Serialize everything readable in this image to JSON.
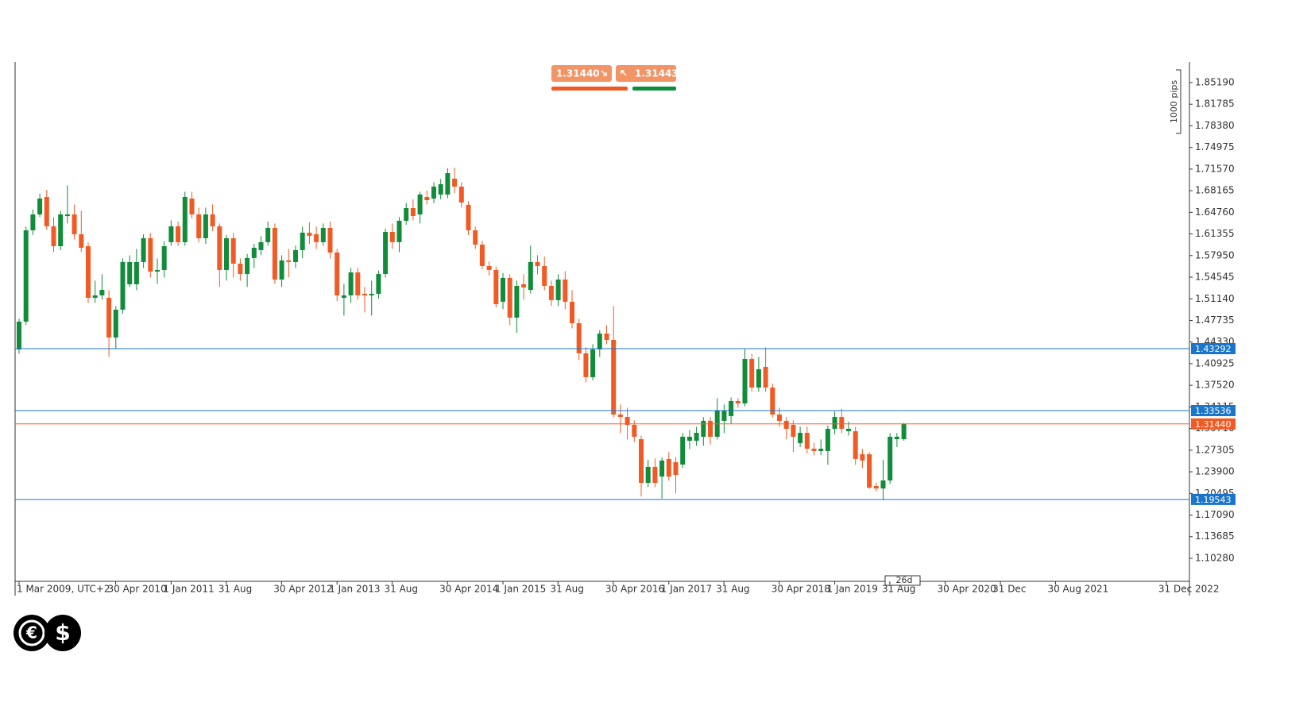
{
  "chart_data": {
    "type": "candlestick",
    "x": [
      "2009-03-01",
      "2009-04-01",
      "2009-05-01",
      "2009-06-01",
      "2009-07-01",
      "2009-08-01",
      "2009-09-01",
      "2009-10-01",
      "2009-11-01",
      "2009-12-01",
      "2010-01-01",
      "2010-02-01",
      "2010-03-01",
      "2010-04-01",
      "2010-05-01",
      "2010-06-01",
      "2010-07-01",
      "2010-08-01",
      "2010-09-01",
      "2010-10-01",
      "2010-11-01",
      "2010-12-01",
      "2011-01-01",
      "2011-02-01",
      "2011-03-01",
      "2011-04-01",
      "2011-05-01",
      "2011-06-01",
      "2011-07-01",
      "2011-08-01",
      "2011-09-01",
      "2011-10-01",
      "2011-11-01",
      "2011-12-01",
      "2012-01-01",
      "2012-02-01",
      "2012-03-01",
      "2012-04-01",
      "2012-05-01",
      "2012-06-01",
      "2012-07-01",
      "2012-08-01",
      "2012-09-01",
      "2012-10-01",
      "2012-11-01",
      "2012-12-01",
      "2013-01-01",
      "2013-02-01",
      "2013-03-01",
      "2013-04-01",
      "2013-05-01",
      "2013-06-01",
      "2013-07-01",
      "2013-08-01",
      "2013-09-01",
      "2013-10-01",
      "2013-11-01",
      "2013-12-01",
      "2014-01-01",
      "2014-02-01",
      "2014-03-01",
      "2014-04-01",
      "2014-05-01",
      "2014-06-01",
      "2014-07-01",
      "2014-08-01",
      "2014-09-01",
      "2014-10-01",
      "2014-11-01",
      "2014-12-01",
      "2015-01-01",
      "2015-02-01",
      "2015-03-01",
      "2015-04-01",
      "2015-05-01",
      "2015-06-01",
      "2015-07-01",
      "2015-08-01",
      "2015-09-01",
      "2015-10-01",
      "2015-11-01",
      "2015-12-01",
      "2016-01-01",
      "2016-02-01",
      "2016-03-01",
      "2016-04-01",
      "2016-05-01",
      "2016-06-01",
      "2016-07-01",
      "2016-08-01",
      "2016-09-01",
      "2016-10-01",
      "2016-11-01",
      "2016-12-01",
      "2017-01-01",
      "2017-02-01",
      "2017-03-01",
      "2017-04-01",
      "2017-05-01",
      "2017-06-01",
      "2017-07-01",
      "2017-08-01",
      "2017-09-01",
      "2017-10-01",
      "2017-11-01",
      "2017-12-01",
      "2018-01-01",
      "2018-02-01",
      "2018-03-01",
      "2018-04-01",
      "2018-05-01",
      "2018-06-01",
      "2018-07-01",
      "2018-08-01",
      "2018-09-01",
      "2018-10-01",
      "2018-11-01",
      "2018-12-01",
      "2019-01-01",
      "2019-02-01",
      "2019-03-01",
      "2019-04-01",
      "2019-05-01",
      "2019-06-01",
      "2019-07-01",
      "2019-08-01",
      "2019-09-01",
      "2019-10-01",
      "2019-11-01"
    ],
    "open": [
      1.4317,
      1.4755,
      1.6193,
      1.6443,
      1.6718,
      1.6256,
      1.5943,
      1.6418,
      1.6443,
      1.6131,
      1.5943,
      1.513,
      1.5168,
      1.513,
      1.4505,
      1.4943,
      1.5343,
      1.5343,
      1.5693,
      1.6068,
      1.5543,
      1.5568,
      1.6006,
      1.6256,
      1.6006,
      1.6693,
      1.6443,
      1.6068,
      1.6443,
      1.6256,
      1.5568,
      1.6068,
      1.5668,
      1.5505,
      1.5756,
      1.5881,
      1.6006,
      1.6231,
      1.5418,
      1.5718,
      1.5693,
      1.5881,
      1.6156,
      1.6131,
      1.6006,
      1.6231,
      1.5843,
      1.513,
      1.5168,
      1.553,
      1.5193,
      1.5168,
      1.5193,
      1.5505,
      1.6168,
      1.6006,
      1.6343,
      1.6543,
      1.6443,
      1.6718,
      1.6693,
      1.6756,
      1.6756,
      1.7006,
      1.6881,
      1.6593,
      1.6193,
      1.5968,
      1.563,
      1.5568,
      1.5068,
      1.5443,
      1.4818,
      1.5343,
      1.5255,
      1.5693,
      1.563,
      1.5318,
      1.5093,
      1.5418,
      1.5068,
      1.473,
      1.4255,
      1.388,
      1.4317,
      1.4567,
      1.4467,
      1.3292,
      1.3254,
      1.3129,
      1.2904,
      1.2216,
      1.2467,
      1.2316,
      1.2592,
      1.2542,
      1.2504,
      1.2879,
      1.2879,
      1.2942,
      1.3192,
      1.2942,
      1.3192,
      1.3267,
      1.3504,
      1.3467,
      1.4167,
      1.3717,
      1.4042,
      1.3717,
      1.3292,
      1.3192,
      1.3129,
      1.2842,
      1.3004,
      1.2754,
      1.2717,
      1.2717,
      1.3067,
      1.3254,
      1.3029,
      1.3029,
      1.2667,
      1.2667,
      1.2166,
      1.2128,
      1.2254,
      1.2904,
      1.2904
    ],
    "high": [
      1.48,
      1.625,
      1.652,
      1.677,
      1.683,
      1.64,
      1.65,
      1.69,
      1.66,
      1.65,
      1.6,
      1.54,
      1.55,
      1.525,
      1.5,
      1.575,
      1.58,
      1.59,
      1.613,
      1.615,
      1.575,
      1.602,
      1.635,
      1.633,
      1.68,
      1.68,
      1.655,
      1.655,
      1.66,
      1.63,
      1.612,
      1.615,
      1.575,
      1.582,
      1.598,
      1.61,
      1.633,
      1.63,
      1.58,
      1.59,
      1.595,
      1.625,
      1.632,
      1.625,
      1.63,
      1.633,
      1.59,
      1.535,
      1.56,
      1.56,
      1.53,
      1.54,
      1.556,
      1.622,
      1.63,
      1.64,
      1.662,
      1.668,
      1.68,
      1.682,
      1.695,
      1.7,
      1.717,
      1.718,
      1.695,
      1.665,
      1.625,
      1.603,
      1.57,
      1.562,
      1.552,
      1.55,
      1.54,
      1.55,
      1.595,
      1.58,
      1.578,
      1.54,
      1.55,
      1.555,
      1.525,
      1.48,
      1.435,
      1.44,
      1.462,
      1.47,
      1.5,
      1.345,
      1.34,
      1.32,
      1.296,
      1.258,
      1.26,
      1.262,
      1.27,
      1.262,
      1.3,
      1.305,
      1.31,
      1.325,
      1.325,
      1.355,
      1.345,
      1.356,
      1.355,
      1.432,
      1.425,
      1.42,
      1.435,
      1.378,
      1.34,
      1.325,
      1.32,
      1.31,
      1.31,
      1.285,
      1.29,
      1.312,
      1.334,
      1.338,
      1.318,
      1.31,
      1.275,
      1.27,
      1.222,
      1.258,
      1.3,
      1.3,
      1.316
    ],
    "low": [
      1.425,
      1.47,
      1.612,
      1.64,
      1.62,
      1.585,
      1.588,
      1.63,
      1.605,
      1.585,
      1.505,
      1.505,
      1.51,
      1.42,
      1.432,
      1.488,
      1.53,
      1.525,
      1.56,
      1.545,
      1.535,
      1.545,
      1.595,
      1.595,
      1.595,
      1.638,
      1.6,
      1.598,
      1.618,
      1.53,
      1.54,
      1.545,
      1.54,
      1.53,
      1.56,
      1.58,
      1.595,
      1.535,
      1.53,
      1.545,
      1.56,
      1.575,
      1.598,
      1.59,
      1.595,
      1.575,
      1.508,
      1.485,
      1.505,
      1.51,
      1.49,
      1.485,
      1.512,
      1.545,
      1.59,
      1.585,
      1.628,
      1.635,
      1.63,
      1.66,
      1.662,
      1.668,
      1.67,
      1.678,
      1.655,
      1.612,
      1.59,
      1.558,
      1.548,
      1.498,
      1.495,
      1.47,
      1.458,
      1.51,
      1.52,
      1.55,
      1.525,
      1.5,
      1.5,
      1.495,
      1.465,
      1.415,
      1.38,
      1.383,
      1.42,
      1.44,
      1.325,
      1.3,
      1.29,
      1.286,
      1.2,
      1.215,
      1.215,
      1.197,
      1.225,
      1.205,
      1.245,
      1.275,
      1.28,
      1.28,
      1.282,
      1.29,
      1.3,
      1.315,
      1.34,
      1.342,
      1.365,
      1.365,
      1.365,
      1.325,
      1.31,
      1.29,
      1.27,
      1.278,
      1.268,
      1.265,
      1.265,
      1.25,
      1.298,
      1.3,
      1.296,
      1.25,
      1.245,
      1.212,
      1.208,
      1.1944,
      1.22,
      1.278,
      1.288
    ],
    "close": [
      1.4755,
      1.6193,
      1.6443,
      1.6693,
      1.6256,
      1.5943,
      1.6443,
      1.6443,
      1.6131,
      1.5918,
      1.513,
      1.5168,
      1.5255,
      1.4505,
      1.4943,
      1.5693,
      1.5693,
      1.5693,
      1.6068,
      1.5543,
      1.5568,
      1.5943,
      1.6256,
      1.6006,
      1.6718,
      1.6443,
      1.6068,
      1.6443,
      1.6256,
      1.5568,
      1.6068,
      1.5668,
      1.5505,
      1.5756,
      1.5918,
      1.6006,
      1.6231,
      1.5418,
      1.5718,
      1.5693,
      1.5881,
      1.6156,
      1.6106,
      1.6006,
      1.6231,
      1.5843,
      1.5168,
      1.5168,
      1.553,
      1.5168,
      1.5168,
      1.5193,
      1.5505,
      1.6168,
      1.6006,
      1.6343,
      1.6543,
      1.6418,
      1.6756,
      1.6668,
      1.6881,
      1.6918,
      1.7093,
      1.6881,
      1.663,
      1.6193,
      1.5968,
      1.563,
      1.5568,
      1.503,
      1.5443,
      1.4818,
      1.5318,
      1.5293,
      1.5693,
      1.563,
      1.5318,
      1.5093,
      1.5418,
      1.5068,
      1.473,
      1.4255,
      1.388,
      1.4317,
      1.4567,
      1.4467,
      1.3292,
      1.3254,
      1.3129,
      1.2942,
      1.2216,
      1.2467,
      1.2216,
      1.2567,
      1.2316,
      1.2341,
      1.2942,
      1.2942,
      1.3004,
      1.3192,
      1.2942,
      1.3354,
      1.3354,
      1.3504,
      1.3467,
      1.4167,
      1.3717,
      1.4005,
      1.3717,
      1.3292,
      1.3192,
      1.3067,
      1.2942,
      1.3004,
      1.2754,
      1.2717,
      1.2754,
      1.3067,
      1.3254,
      1.3067,
      1.3067,
      1.2592,
      1.2567,
      1.2141,
      1.2128,
      1.2254,
      1.2942,
      1.2942,
      1.3144
    ],
    "up_color": "#118c3a",
    "down_color": "#f15a24",
    "ylim": [
      1.0665,
      1.8844
    ],
    "yticks": [
      {
        "value": 1.8519,
        "label": "1.85190"
      },
      1.81785,
      {
        "value": 1.7838,
        "label": "1.78380"
      },
      1.74975,
      {
        "value": 1.7157,
        "label": "1.71570"
      },
      1.68165,
      {
        "value": 1.6476,
        "label": "1.64760"
      },
      1.61355,
      {
        "value": 1.5795,
        "label": "1.57950"
      },
      1.54545,
      {
        "value": 1.5114,
        "label": "1.51140"
      },
      1.47735,
      {
        "value": 1.4433,
        "label": "1.44330"
      },
      1.40925,
      {
        "value": 1.3752,
        "label": "1.37520"
      },
      1.34115,
      {
        "value": 1.3071,
        "label": "1.30710"
      },
      1.27305,
      {
        "value": 1.239,
        "label": "1.23900"
      },
      1.20495,
      {
        "value": 1.1709,
        "label": "1.17090"
      },
      1.13685,
      {
        "value": 1.1028,
        "label": "1.10280"
      }
    ],
    "xticks": [
      {
        "value": "2009-03-01",
        "label": "1 Mar 2009, UTC+2"
      },
      {
        "value": "2010-04-30",
        "label": "30 Apr 2010"
      },
      {
        "value": "2011-01-01",
        "label": "1 Jan 2011"
      },
      {
        "value": "2011-08-31",
        "label": "31 Aug"
      },
      {
        "value": "2012-04-30",
        "label": "30 Apr 2012"
      },
      {
        "value": "2013-01-01",
        "label": "1 Jan 2013"
      },
      {
        "value": "2013-08-31",
        "label": "31 Aug"
      },
      {
        "value": "2014-04-30",
        "label": "30 Apr 2014"
      },
      {
        "value": "2015-01-01",
        "label": "1 Jan 2015"
      },
      {
        "value": "2015-08-31",
        "label": "31 Aug"
      },
      {
        "value": "2016-04-30",
        "label": "30 Apr 2016"
      },
      {
        "value": "2017-01-01",
        "label": "1 Jan 2017"
      },
      {
        "value": "2017-08-31",
        "label": "31 Aug"
      },
      {
        "value": "2018-04-30",
        "label": "30 Apr 2018"
      },
      {
        "value": "2019-01-01",
        "label": "1 Jan 2019"
      },
      {
        "value": "2019-08-31",
        "label": "31 Aug"
      },
      {
        "value": "2020-04-30",
        "label": "30 Apr 2020"
      },
      {
        "value": "2020-12-31",
        "label": "31 Dec"
      },
      {
        "value": "2021-08-30",
        "label": "30 Aug 2021"
      },
      {
        "value": "2022-12-31",
        "label": "31 Dec 2022"
      }
    ],
    "levels": [
      {
        "value": 1.43292,
        "color": "#1b75c9"
      },
      {
        "value": 1.33536,
        "color": "#1b75c9"
      },
      {
        "value": 1.3144,
        "label": "1.31440",
        "color": "#f15a24"
      },
      {
        "value": 1.19543,
        "color": "#1b75c9"
      }
    ],
    "sell_price": {
      "value": 1.3144,
      "label": "1.31440"
    },
    "buy_price": 1.31443,
    "scale_note": "1000 pips",
    "period_note": "26d"
  },
  "logo": {
    "euro": "€",
    "dollar": "$"
  }
}
